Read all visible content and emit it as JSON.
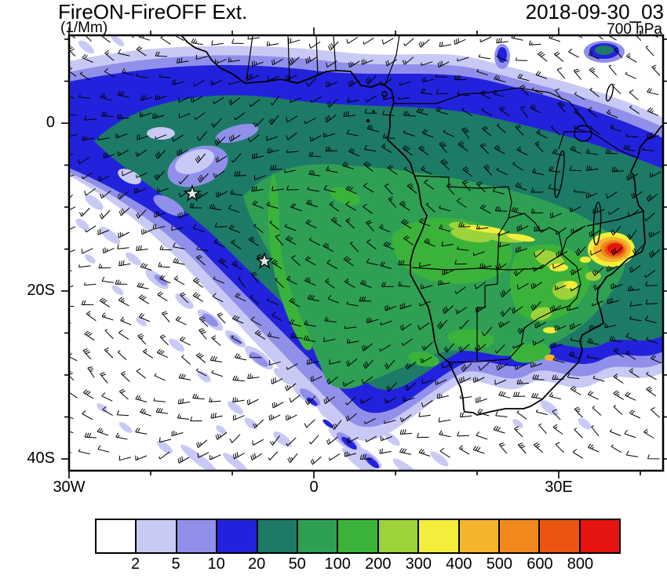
{
  "header": {
    "title": "FireON-FireOFF Ext.",
    "units": "(1/Mm)",
    "datetime": "2018-09-30_03",
    "level": "700 hPa"
  },
  "axes": {
    "y_ticks": [
      {
        "label": "0"
      },
      {
        "label": "20S"
      },
      {
        "label": "40S"
      }
    ],
    "x_ticks": [
      {
        "label": "30W"
      },
      {
        "label": "0"
      },
      {
        "label": "30E"
      }
    ]
  },
  "colorbar": {
    "levels": [
      "2",
      "5",
      "10",
      "20",
      "50",
      "100",
      "200",
      "300",
      "400",
      "500",
      "600",
      "800"
    ],
    "colors": [
      "#ffffff",
      "#c9c9f5",
      "#9090ea",
      "#2222dc",
      "#1d7a67",
      "#2f9f54",
      "#3bb33b",
      "#9ed23a",
      "#f2ee3c",
      "#f5b42e",
      "#f0881c",
      "#ea5510",
      "#e61410"
    ]
  },
  "chart_data": {
    "type": "heatmap",
    "title": "FireON-FireOFF Ext.",
    "units": "1/Mm",
    "valid_time": "2018-09-30_03",
    "pressure_level_hPa": 700,
    "x_axis": {
      "tick_labels": [
        "30W",
        "0",
        "30E"
      ],
      "lon_range_deg": [
        -30,
        43
      ]
    },
    "y_axis": {
      "tick_labels": [
        "0",
        "20S",
        "40S"
      ],
      "lat_range_deg": [
        -41,
        10.5
      ]
    },
    "contour_levels_1_per_Mm": [
      2,
      5,
      10,
      20,
      50,
      100,
      200,
      300,
      400,
      500,
      600,
      800
    ],
    "palette": [
      "#ffffff",
      "#c9c9f5",
      "#9090ea",
      "#2222dc",
      "#1d7a67",
      "#2f9f54",
      "#3bb33b",
      "#9ed23a",
      "#f2ee3c",
      "#f5b42e",
      "#f0881c",
      "#ea5510",
      "#e61410"
    ],
    "overlays": {
      "wind_barbs": "black wind barbs across full domain",
      "coastlines": true,
      "country_borders": true,
      "star_markers_lonlat": [
        [
          -14.9,
          -8.4
        ],
        [
          -6.1,
          -16.3
        ]
      ]
    },
    "field_summary": {
      "description": "Positive aerosol extinction difference plume spanning the SE Atlantic and southern Africa, tapering southwest over the ocean",
      "plume_envelope": "values 2-50 from ~10N to ~30S, 30W to 42E",
      "core_50_200": "central/southern Africa and adjacent Atlantic, ~5S-25S, 10W-35E",
      "local_maximum": {
        "lon": 36.5,
        "lat": -15,
        "value_1_per_Mm": ">800"
      },
      "secondary_spot": {
        "lon": 35.5,
        "lat": 9.5,
        "value_1_per_Mm": "20-50"
      }
    }
  }
}
